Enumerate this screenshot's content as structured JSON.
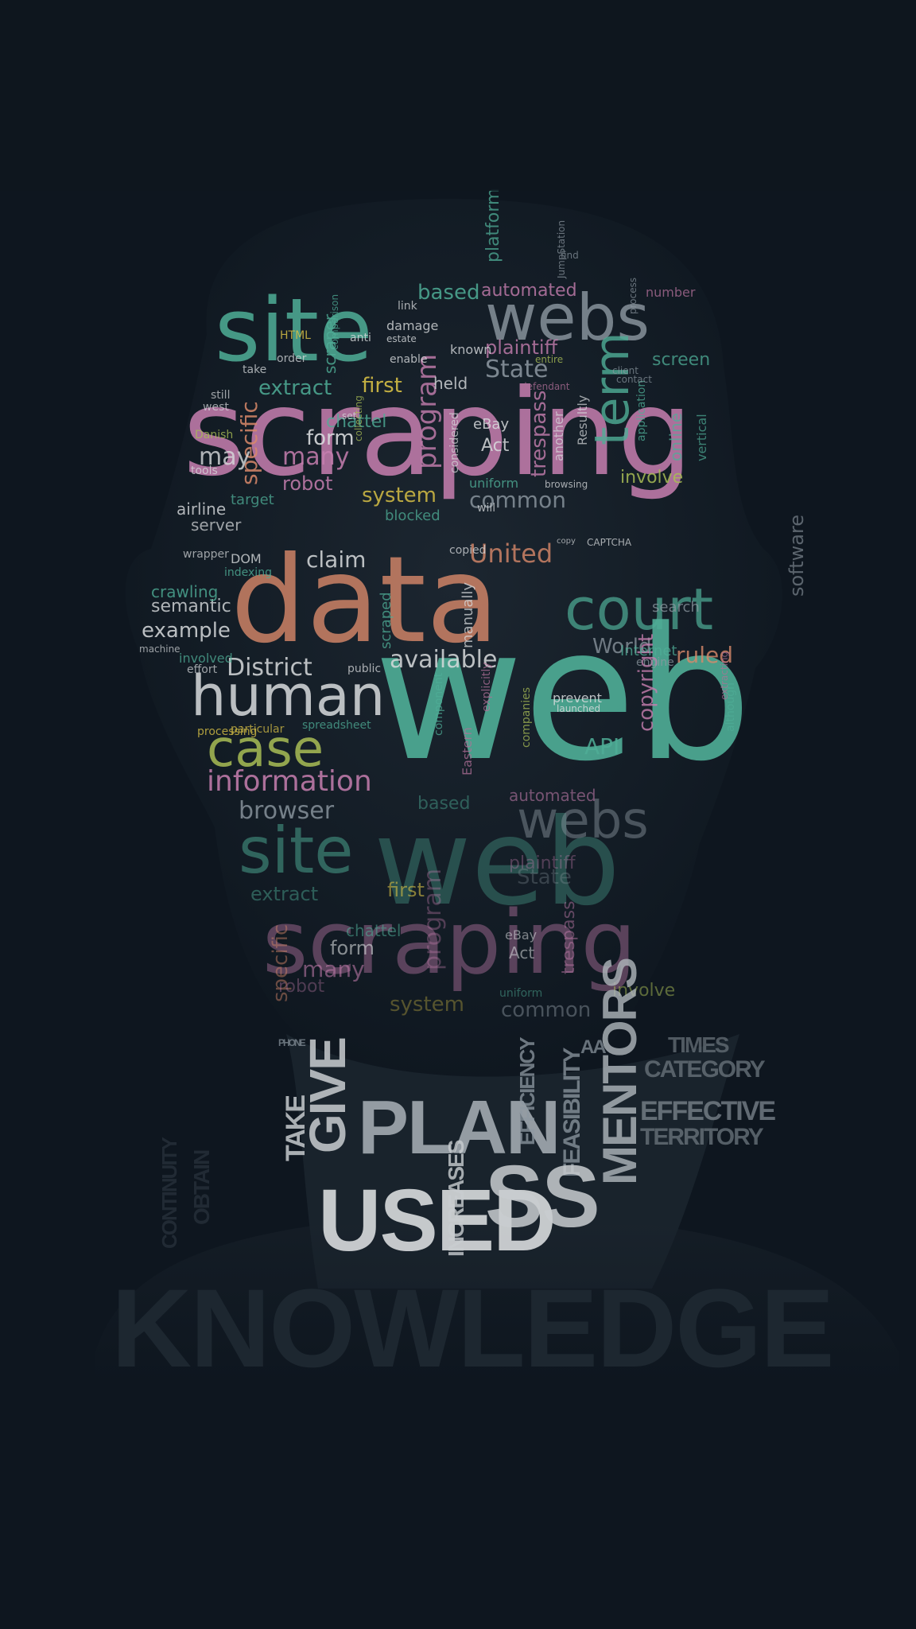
{
  "palette": {
    "background": "#0e161f",
    "teal": "#4fae97",
    "pink": "#c77fb0",
    "salmon": "#d9896a",
    "grey": "#8e99a2",
    "lime": "#a9bd55",
    "yellow": "#d6bf45",
    "white": "#d8dbdd",
    "mauve": "#b27099"
  },
  "head_cloud": [
    {
      "text": "web",
      "color": "teal"
    },
    {
      "text": "scraping",
      "color": "pink"
    },
    {
      "text": "site",
      "color": "teal"
    },
    {
      "text": "webs",
      "color": "grey"
    },
    {
      "text": "data",
      "color": "salmon"
    },
    {
      "text": "human",
      "color": "white"
    },
    {
      "text": "case",
      "color": "lime"
    },
    {
      "text": "information",
      "color": "pink"
    },
    {
      "text": "browser",
      "color": "grey"
    },
    {
      "text": "extract",
      "color": "teal"
    },
    {
      "text": "first",
      "color": "yellow"
    },
    {
      "text": "State",
      "color": "grey"
    },
    {
      "text": "plaintiff",
      "color": "pink"
    },
    {
      "text": "based",
      "color": "teal"
    },
    {
      "text": "automated",
      "color": "pink"
    },
    {
      "text": "chattel",
      "color": "teal"
    },
    {
      "text": "form",
      "color": "white"
    },
    {
      "text": "many",
      "color": "pink"
    },
    {
      "text": "robot",
      "color": "pink"
    },
    {
      "text": "system",
      "color": "yellow"
    },
    {
      "text": "specific",
      "color": "salmon"
    },
    {
      "text": "program",
      "color": "pink"
    },
    {
      "text": "trespass",
      "color": "pink"
    },
    {
      "text": "eBay",
      "color": "white"
    },
    {
      "text": "Act",
      "color": "white"
    },
    {
      "text": "term",
      "color": "teal"
    },
    {
      "text": "common",
      "color": "grey"
    },
    {
      "text": "uniform",
      "color": "teal"
    },
    {
      "text": "involve",
      "color": "lime"
    },
    {
      "text": "United",
      "color": "salmon"
    },
    {
      "text": "claim",
      "color": "white"
    },
    {
      "text": "District",
      "color": "white"
    },
    {
      "text": "available",
      "color": "white"
    },
    {
      "text": "World",
      "color": "grey"
    },
    {
      "text": "copyright",
      "color": "pink"
    },
    {
      "text": "API",
      "color": "teal"
    },
    {
      "text": "prevent",
      "color": "white"
    },
    {
      "text": "launched",
      "color": "white"
    },
    {
      "text": "example",
      "color": "white"
    },
    {
      "text": "semantic",
      "color": "white"
    },
    {
      "text": "crawling",
      "color": "teal"
    },
    {
      "text": "DOM",
      "color": "white"
    },
    {
      "text": "indexing",
      "color": "teal"
    },
    {
      "text": "HTML",
      "color": "yellow"
    },
    {
      "text": "scraper",
      "color": "teal"
    },
    {
      "text": "anti",
      "color": "white"
    },
    {
      "text": "damage",
      "color": "white"
    },
    {
      "text": "estate",
      "color": "white"
    },
    {
      "text": "enable",
      "color": "white"
    },
    {
      "text": "known",
      "color": "white"
    },
    {
      "text": "entire",
      "color": "lime"
    },
    {
      "text": "held",
      "color": "white"
    },
    {
      "text": "defendant",
      "color": "mauve"
    },
    {
      "text": "online",
      "color": "teal"
    },
    {
      "text": "application",
      "color": "teal"
    },
    {
      "text": "platform",
      "color": "teal"
    },
    {
      "text": "number",
      "color": "mauve"
    },
    {
      "text": "Danish",
      "color": "lime"
    },
    {
      "text": "airline",
      "color": "white"
    },
    {
      "text": "tools",
      "color": "white"
    },
    {
      "text": "target",
      "color": "teal"
    },
    {
      "text": "blocked",
      "color": "teal"
    },
    {
      "text": "copied",
      "color": "white"
    },
    {
      "text": "court",
      "color": "teal"
    },
    {
      "text": "ruled",
      "color": "salmon"
    },
    {
      "text": "Internet",
      "color": "teal"
    },
    {
      "text": "software",
      "color": "grey"
    },
    {
      "text": "search",
      "color": "grey"
    },
    {
      "text": "engine",
      "color": "grey"
    },
    {
      "text": "manually",
      "color": "white"
    },
    {
      "text": "public",
      "color": "white"
    },
    {
      "text": "scraped",
      "color": "teal"
    },
    {
      "text": "spreadsheet",
      "color": "teal"
    },
    {
      "text": "processing",
      "color": "yellow"
    },
    {
      "text": "Eastern",
      "color": "mauve"
    },
    {
      "text": "companies",
      "color": "lime"
    },
    {
      "text": "explicitly",
      "color": "mauve"
    },
    {
      "text": "component",
      "color": "teal"
    },
    {
      "text": "collecting",
      "color": "lime"
    },
    {
      "text": "comparison",
      "color": "teal"
    },
    {
      "text": "process",
      "color": "grey"
    },
    {
      "text": "client",
      "color": "grey"
    },
    {
      "text": "contact",
      "color": "grey"
    },
    {
      "text": "JumpStation",
      "color": "grey"
    },
    {
      "text": "find",
      "color": "grey"
    },
    {
      "text": "CAPTCHA",
      "color": "white"
    },
    {
      "text": "copy",
      "color": "white"
    },
    {
      "text": "browsing",
      "color": "white"
    },
    {
      "text": "another",
      "color": "white"
    },
    {
      "text": "Resultly",
      "color": "white"
    },
    {
      "text": "considered",
      "color": "white"
    },
    {
      "text": "involved",
      "color": "teal"
    },
    {
      "text": "effort",
      "color": "white"
    },
    {
      "text": "machine",
      "color": "white"
    },
    {
      "text": "wrapper",
      "color": "white"
    },
    {
      "text": "server",
      "color": "white"
    },
    {
      "text": "still",
      "color": "white"
    },
    {
      "text": "west",
      "color": "white"
    },
    {
      "text": "take",
      "color": "white"
    },
    {
      "text": "order",
      "color": "white"
    },
    {
      "text": "may",
      "color": "white"
    },
    {
      "text": "particular",
      "color": "yellow"
    },
    {
      "text": "vertical",
      "color": "teal"
    },
    {
      "text": "although",
      "color": "teal"
    },
    {
      "text": "extracting",
      "color": "mauve"
    },
    {
      "text": "screen",
      "color": "teal"
    },
    {
      "text": "set",
      "color": "white"
    },
    {
      "text": "link",
      "color": "white"
    },
    {
      "text": "will",
      "color": "white"
    }
  ],
  "neck_cloud": [
    "PLAN",
    "USED",
    "GIVE",
    "TAKE",
    "INCREASES",
    "EFFICIENCY",
    "FEASIBILITY",
    "MENTORS",
    "CATEGORY",
    "EFFECTIVE",
    "TERRITORY",
    "KNOWLEDGE",
    "SS",
    "OBTAIN",
    "CONTINUITY",
    "PHONE",
    "TIMES",
    "AA"
  ]
}
